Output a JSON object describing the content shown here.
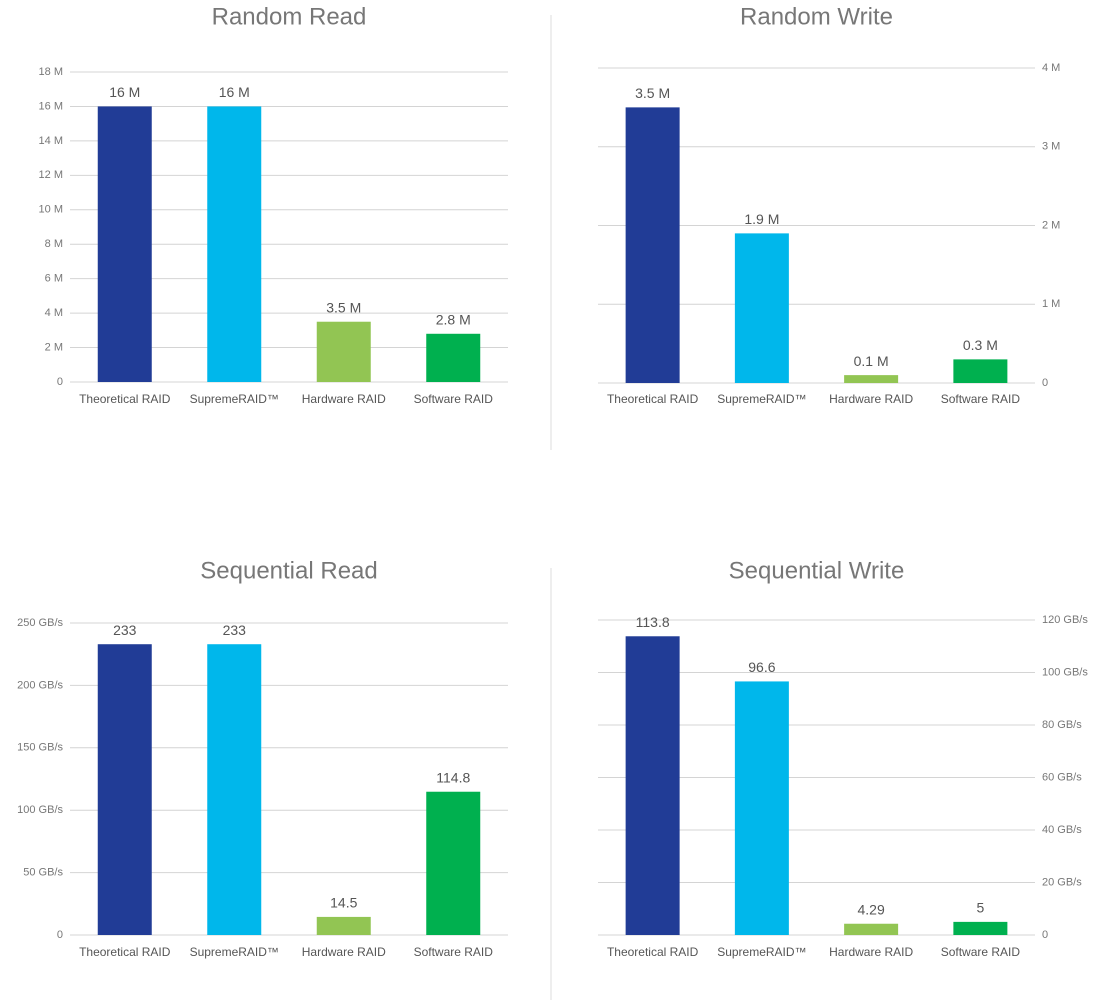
{
  "chart_data": [
    {
      "type": "bar",
      "title": "Random Read",
      "categories": [
        "Theoretical RAID",
        "SupremeRAID™",
        "Hardware RAID",
        "Software RAID"
      ],
      "values": [
        16,
        16,
        3.5,
        2.8
      ],
      "value_labels": [
        "16 M",
        "16 M",
        "3.5 M",
        "2.8 M"
      ],
      "colors": [
        "#213c96",
        "#00b7eb",
        "#92c553",
        "#00b04f"
      ],
      "ylim": [
        0,
        18
      ],
      "yticks": [
        0,
        {
          "value": 2,
          "label": "2 M"
        },
        {
          "value": 4,
          "label": "4 M"
        },
        {
          "value": 6,
          "label": "6 M"
        },
        {
          "value": 8,
          "label": "8 M"
        },
        {
          "value": 10,
          "label": "10 M"
        },
        {
          "value": 12,
          "label": "12 M"
        },
        {
          "value": 14,
          "label": "14 M"
        },
        {
          "value": 16,
          "label": "16 M"
        },
        {
          "value": 18,
          "label": "18 M"
        }
      ],
      "y_axis_side": "left",
      "grid": true
    },
    {
      "type": "bar",
      "title": "Random Write",
      "categories": [
        "Theoretical RAID",
        "SupremeRAID™",
        "Hardware RAID",
        "Software RAID"
      ],
      "values": [
        3.5,
        1.9,
        0.1,
        0.3
      ],
      "value_labels": [
        "3.5 M",
        "1.9 M",
        "0.1 M",
        "0.3 M"
      ],
      "colors": [
        "#213c96",
        "#00b7eb",
        "#92c553",
        "#00b04f"
      ],
      "ylim": [
        0,
        4
      ],
      "yticks": [
        0,
        {
          "value": 1,
          "label": "1 M"
        },
        {
          "value": 2,
          "label": "2 M"
        },
        {
          "value": 3,
          "label": "3 M"
        },
        {
          "value": 4,
          "label": "4 M"
        }
      ],
      "y_axis_side": "right",
      "grid": true
    },
    {
      "type": "bar",
      "title": "Sequential Read",
      "categories": [
        "Theoretical RAID",
        "SupremeRAID™",
        "Hardware RAID",
        "Software RAID"
      ],
      "values": [
        233,
        233,
        14.5,
        114.8
      ],
      "colors": [
        "#213c96",
        "#00b7eb",
        "#92c553",
        "#00b04f"
      ],
      "ylim": [
        0,
        250
      ],
      "yticks": [
        0,
        {
          "value": 50,
          "label": "50 GB/s"
        },
        {
          "value": 100,
          "label": "100 GB/s"
        },
        {
          "value": 150,
          "label": "150 GB/s"
        },
        {
          "value": 200,
          "label": "200 GB/s"
        },
        {
          "value": 250,
          "label": "250 GB/s"
        }
      ],
      "y_axis_side": "left",
      "grid": true
    },
    {
      "type": "bar",
      "title": "Sequential Write",
      "categories": [
        "Theoretical RAID",
        "SupremeRAID™",
        "Hardware RAID",
        "Software RAID"
      ],
      "values": [
        113.8,
        96.6,
        4.29,
        5
      ],
      "colors": [
        "#213c96",
        "#00b7eb",
        "#92c553",
        "#00b04f"
      ],
      "ylim": [
        0,
        120
      ],
      "yticks": [
        0,
        {
          "value": 20,
          "label": "20 GB/s"
        },
        {
          "value": 40,
          "label": "40 GB/s"
        },
        {
          "value": 60,
          "label": "60 GB/s"
        },
        {
          "value": 80,
          "label": "80 GB/s"
        },
        {
          "value": 100,
          "label": "100 GB/s"
        },
        {
          "value": 120,
          "label": "120 GB/s"
        }
      ],
      "y_axis_side": "right",
      "grid": true
    }
  ]
}
